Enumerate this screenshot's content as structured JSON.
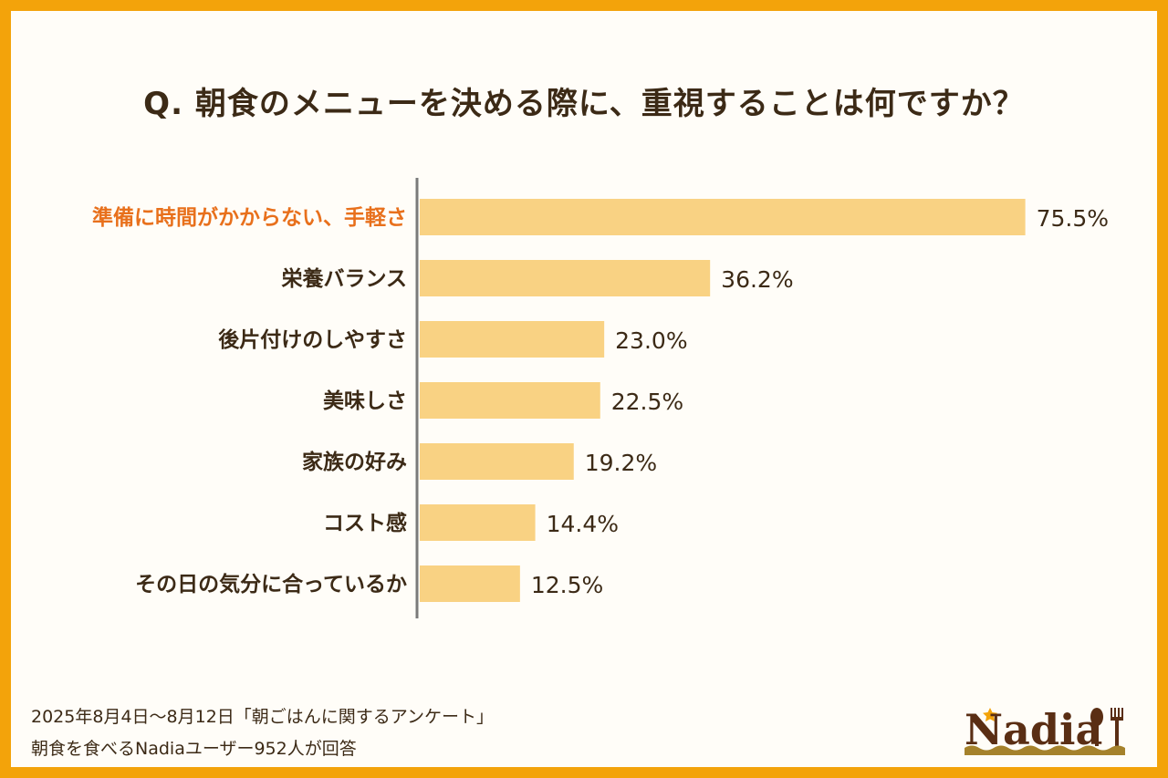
{
  "chart_data": {
    "type": "bar",
    "orientation": "horizontal",
    "title": "Q. 朝食のメニューを決める際に、重視することは何ですか？",
    "categories": [
      "準備に時間がかからない、手軽さ",
      "栄養バランス",
      "後片付けのしやすさ",
      "美味しさ",
      "家族の好み",
      "コスト感",
      "その日の気分に合っているか"
    ],
    "values": [
      75.5,
      36.2,
      23.0,
      22.5,
      19.2,
      14.4,
      12.5
    ],
    "labels": [
      "75.5%",
      "36.2%",
      "23.0%",
      "22.5%",
      "19.2%",
      "14.4%",
      "12.5%"
    ],
    "highlight_index": 0,
    "xlim": [
      0,
      76
    ],
    "grid": false
  },
  "colors": {
    "bar": "#f9d283",
    "text": "#3c2a16",
    "highlight": "#e8701c",
    "axis": "#7a7a7a",
    "border": "#f3a30a"
  },
  "footer": {
    "line1": "2025年8月4日～8月12日「朝ごはんに関するアンケート」",
    "line2": "朝食を食べるNadiaユーザー952人が回答"
  },
  "logo": {
    "text": "Nadia"
  }
}
